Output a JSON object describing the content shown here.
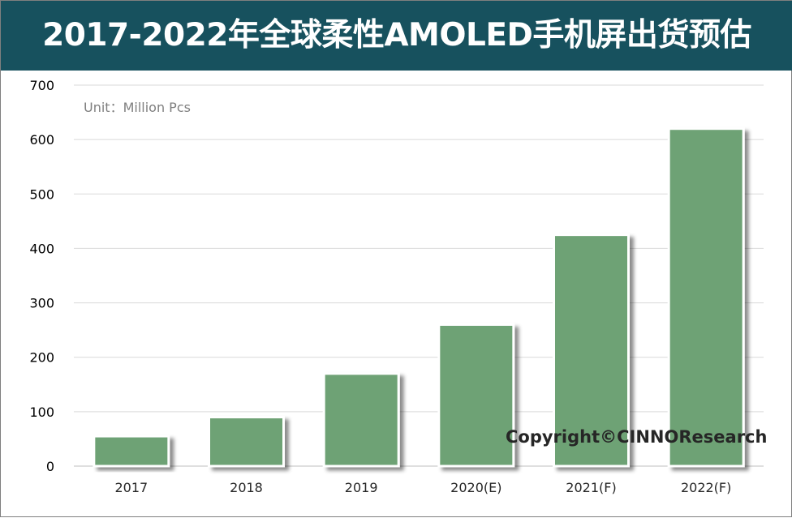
{
  "header": {
    "title": "2017-2022年全球柔性AMOLED手机屏出货预估"
  },
  "unit_label": "Unit：Million Pcs",
  "watermark": "Copyright©CINNOResearch",
  "colors": {
    "title_bg": "#17515e",
    "bar": "#6ea275",
    "bar_border": "#ffffff",
    "grid": "#d9d9d9"
  },
  "chart_data": {
    "type": "bar",
    "title": "2017-2022年全球柔性AMOLED手机屏出货预估",
    "categories": [
      "2017",
      "2018",
      "2019",
      "2020(E)",
      "2021(F)",
      "2022(F)"
    ],
    "values": [
      55,
      90,
      170,
      260,
      425,
      620
    ],
    "ylabel": "Unit：Million Pcs",
    "ylim": [
      0,
      700
    ],
    "yticks": [
      0,
      100,
      200,
      300,
      400,
      500,
      600,
      700
    ],
    "grid": true,
    "legend": "none"
  }
}
